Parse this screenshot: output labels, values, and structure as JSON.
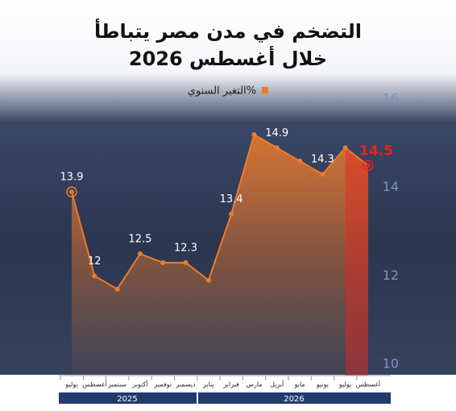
{
  "chart_data": {
    "type": "line",
    "title": "التضخم في مدن مصر يتباطأ",
    "subtitle": "خلال أغسطس 2026",
    "categories": [
      "يوليو",
      "أغسطس",
      "سبتمبر",
      "أكتوبر",
      "نوفمبر",
      "ديسمبر",
      "يناير",
      "فبراير",
      "مارس",
      "أبريل",
      "مايو",
      "يونيو",
      "يوليو",
      "أغسطس"
    ],
    "years": [
      "2025",
      "2026"
    ],
    "series": [
      {
        "name": "التغير السنوي%",
        "color": "#f07a2a",
        "values": [
          13.9,
          12,
          11.7,
          12.5,
          12.3,
          12.3,
          11.9,
          13.4,
          15.2,
          14.9,
          14.6,
          14.3,
          14.9,
          14.5
        ],
        "value_labels": [
          "13.9",
          "12",
          null,
          "12.5",
          null,
          "12.3",
          null,
          "13.4",
          null,
          "14.9",
          null,
          "14.3",
          null,
          "14.5"
        ]
      }
    ],
    "highlight_color": "#e8231f",
    "ylim": [
      10,
      16
    ],
    "yticks": [
      10,
      12,
      14,
      16
    ]
  }
}
